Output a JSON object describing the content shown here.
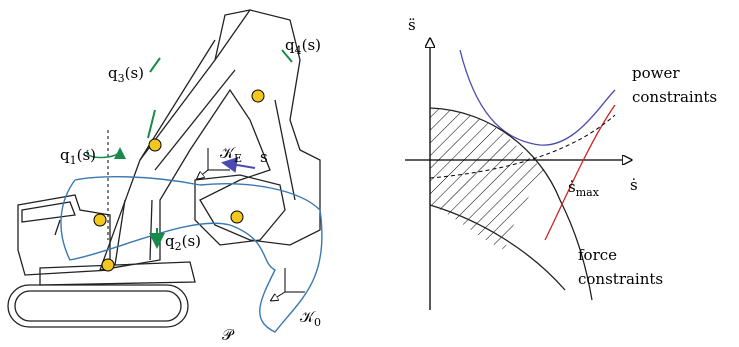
{
  "left_diagram": {
    "labels": [
      {
        "base": "q",
        "sub": "3",
        "rest": "(s)"
      },
      {
        "base": "q",
        "sub": "4",
        "rest": "(s)"
      },
      {
        "base": "q",
        "sub": "1",
        "rest": "(s)"
      },
      {
        "base": "𝒦",
        "sub": "E",
        "rest": ""
      },
      {
        "base": "s",
        "sub": "",
        "rest": ""
      },
      {
        "base": "q",
        "sub": "2",
        "rest": "(s)"
      },
      {
        "base": "𝒫",
        "sub": "",
        "rest": ""
      },
      {
        "base": "𝒦",
        "sub": "0",
        "rest": ""
      }
    ]
  },
  "right_diagram": {
    "y_axis": "s̈",
    "x_axis": "ṡ",
    "x_mark": {
      "base": "ṡ",
      "sub": "max"
    },
    "power": [
      "power",
      "constraints"
    ],
    "force": [
      "force",
      "constraints"
    ]
  }
}
